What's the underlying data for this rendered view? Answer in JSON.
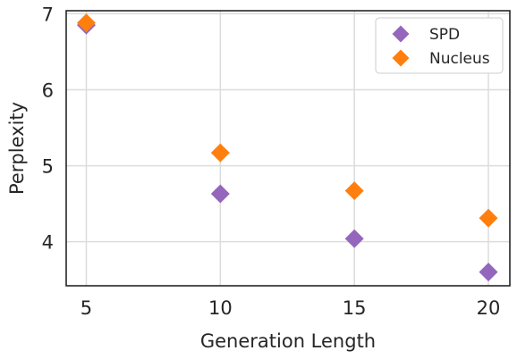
{
  "chart_data": {
    "type": "scatter",
    "title": "",
    "xlabel": "Generation Length",
    "ylabel": "Perplexity",
    "x": [
      5,
      10,
      15,
      20
    ],
    "xticks": [
      5,
      10,
      15,
      20
    ],
    "yticks": [
      4,
      5,
      6,
      7
    ],
    "xlim": [
      4.25,
      20.8
    ],
    "ylim": [
      3.42,
      7.04
    ],
    "grid": true,
    "legend_position": "top-right",
    "marker": "diamond",
    "series": [
      {
        "name": "SPD",
        "color": "#9467bd",
        "values": [
          6.85,
          4.63,
          4.04,
          3.6
        ]
      },
      {
        "name": "Nucleus",
        "color": "#ff7f0e",
        "values": [
          6.88,
          5.17,
          4.67,
          4.31
        ]
      }
    ]
  }
}
